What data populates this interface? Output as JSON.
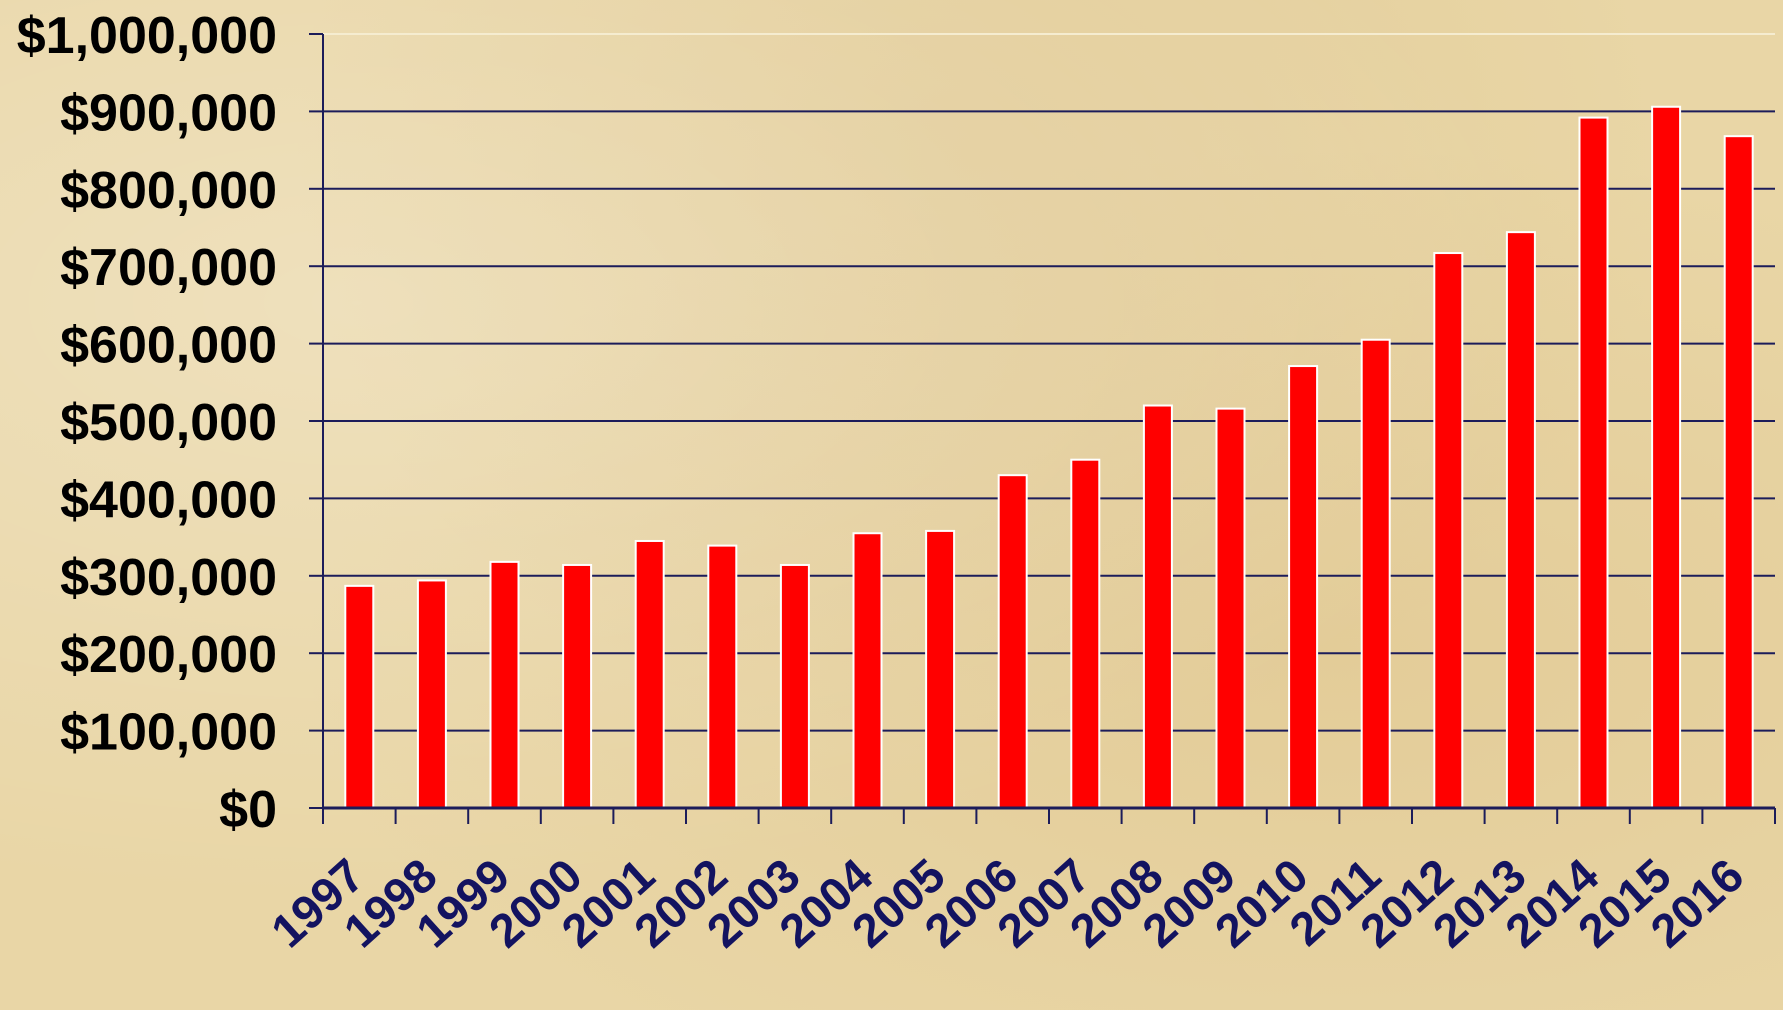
{
  "chart_data": {
    "type": "bar",
    "title": "",
    "xlabel": "",
    "ylabel": "",
    "categories": [
      "1997",
      "1998",
      "1999",
      "2000",
      "2001",
      "2002",
      "2003",
      "2004",
      "2005",
      "2006",
      "2007",
      "2008",
      "2009",
      "2010",
      "2011",
      "2012",
      "2013",
      "2014",
      "2015",
      "2016"
    ],
    "values": [
      287000,
      294000,
      318000,
      314000,
      345000,
      339000,
      314000,
      355000,
      358000,
      430000,
      450000,
      520000,
      516000,
      571000,
      605000,
      717000,
      744000,
      892000,
      906000,
      868000
    ],
    "ylim": [
      0,
      1000000
    ],
    "y_ticks": [
      0,
      100000,
      200000,
      300000,
      400000,
      500000,
      600000,
      700000,
      800000,
      900000,
      1000000
    ],
    "y_tick_labels": [
      "$0",
      "$100,000",
      "$200,000",
      "$300,000",
      "$400,000",
      "$500,000",
      "$600,000",
      "$700,000",
      "$800,000",
      "$900,000",
      "$1,000,000"
    ],
    "grid": true,
    "legend": "none",
    "colors": {
      "bar_fill": "#ff0000",
      "bar_outline": "#ffffff",
      "gridline": "#1c1c5a",
      "axis": "#1c1c5a",
      "y_tick_text": "#000000",
      "x_tick_text": "#131360",
      "background": "#e9d6a6"
    }
  }
}
